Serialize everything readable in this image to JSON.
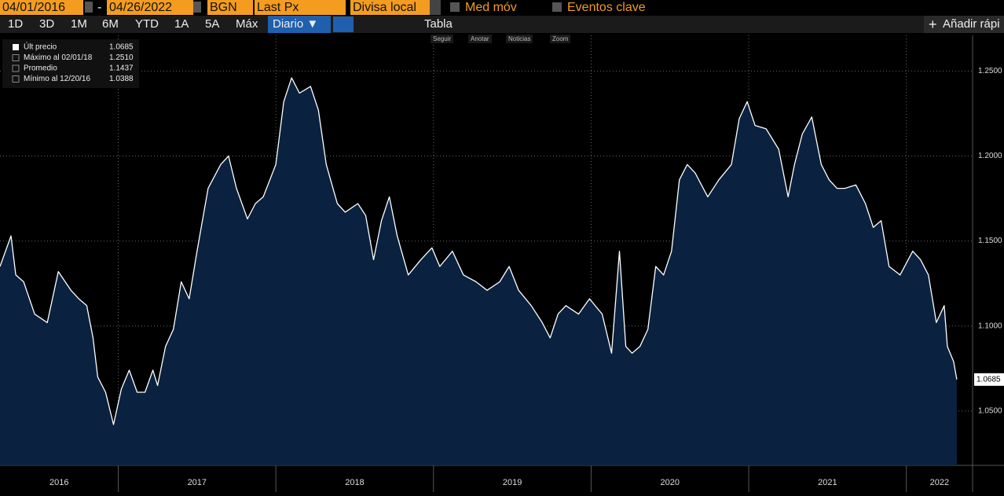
{
  "toolbar": {
    "start_date": "04/01/2016",
    "separator": "-",
    "end_date": "04/26/2022",
    "currency": "BGN",
    "field": "Last Px",
    "currency_mode": "Divisa local",
    "moving_avg": "Med móv",
    "key_events": "Eventos clave"
  },
  "periods": [
    "1D",
    "3D",
    "1M",
    "6M",
    "YTD",
    "1A",
    "5A",
    "Máx"
  ],
  "frequency": "Diario ▼",
  "table": "Tabla",
  "quick_add": "Añadir rápi",
  "chart_tools": [
    "Seguir",
    "Anotar",
    "Noticias",
    "Zoom"
  ],
  "chart_data": {
    "type": "line",
    "color": "#ffffff",
    "fill": "#0a2240",
    "grid": true,
    "stats": [
      {
        "label": "Últ precio",
        "value": "1.0685"
      },
      {
        "label": "Máximo al 02/01/18",
        "value": "1.2510"
      },
      {
        "label": "Promedio",
        "value": "1.1437"
      },
      {
        "label": "Mínimo al 12/20/16",
        "value": "1.0388"
      }
    ],
    "x": [
      2016.25,
      2016.32,
      2016.35,
      2016.4,
      2016.47,
      2016.55,
      2016.62,
      2016.7,
      2016.75,
      2016.8,
      2016.84,
      2016.87,
      2016.92,
      2016.97,
      2017.02,
      2017.07,
      2017.12,
      2017.17,
      2017.22,
      2017.25,
      2017.3,
      2017.35,
      2017.4,
      2017.45,
      2017.5,
      2017.57,
      2017.65,
      2017.7,
      2017.75,
      2017.82,
      2017.87,
      2017.92,
      2018.0,
      2018.05,
      2018.1,
      2018.15,
      2018.22,
      2018.27,
      2018.32,
      2018.39,
      2018.44,
      2018.52,
      2018.57,
      2018.62,
      2018.67,
      2018.72,
      2018.77,
      2018.84,
      2018.92,
      2018.99,
      2019.04,
      2019.12,
      2019.19,
      2019.27,
      2019.34,
      2019.42,
      2019.48,
      2019.54,
      2019.62,
      2019.69,
      2019.74,
      2019.79,
      2019.84,
      2019.92,
      2019.99,
      2020.07,
      2020.13,
      2020.18,
      2020.22,
      2020.26,
      2020.31,
      2020.36,
      2020.41,
      2020.46,
      2020.51,
      2020.56,
      2020.61,
      2020.66,
      2020.74,
      2020.81,
      2020.89,
      2020.94,
      2020.99,
      2021.04,
      2021.11,
      2021.19,
      2021.25,
      2021.29,
      2021.34,
      2021.4,
      2021.46,
      2021.51,
      2021.56,
      2021.61,
      2021.68,
      2021.74,
      2021.79,
      2021.84,
      2021.89,
      2021.96,
      2022.04,
      2022.09,
      2022.14,
      2022.19,
      2022.24,
      2022.26,
      2022.3,
      2022.32
    ],
    "values": [
      1.135,
      1.153,
      1.13,
      1.126,
      1.107,
      1.102,
      1.132,
      1.121,
      1.116,
      1.112,
      1.093,
      1.07,
      1.061,
      1.042,
      1.063,
      1.074,
      1.061,
      1.061,
      1.074,
      1.065,
      1.088,
      1.098,
      1.126,
      1.116,
      1.144,
      1.181,
      1.195,
      1.2,
      1.181,
      1.163,
      1.172,
      1.176,
      1.195,
      1.232,
      1.246,
      1.237,
      1.241,
      1.227,
      1.195,
      1.172,
      1.167,
      1.172,
      1.165,
      1.139,
      1.162,
      1.176,
      1.153,
      1.13,
      1.139,
      1.146,
      1.135,
      1.144,
      1.13,
      1.126,
      1.121,
      1.126,
      1.135,
      1.121,
      1.112,
      1.102,
      1.093,
      1.107,
      1.112,
      1.107,
      1.116,
      1.107,
      1.084,
      1.144,
      1.088,
      1.084,
      1.088,
      1.098,
      1.135,
      1.13,
      1.144,
      1.186,
      1.195,
      1.19,
      1.176,
      1.186,
      1.195,
      1.222,
      1.232,
      1.218,
      1.216,
      1.204,
      1.176,
      1.195,
      1.213,
      1.223,
      1.195,
      1.186,
      1.181,
      1.181,
      1.183,
      1.172,
      1.158,
      1.162,
      1.135,
      1.13,
      1.144,
      1.139,
      1.13,
      1.102,
      1.112,
      1.088,
      1.079,
      1.0685
    ],
    "xlim": [
      2016.25,
      2022.42
    ],
    "ylim": [
      1.018,
      1.271
    ],
    "xticks": [
      {
        "value": 2016.25,
        "label": "2016"
      },
      {
        "value": 2017,
        "label": "2017"
      },
      {
        "value": 2018,
        "label": "2018"
      },
      {
        "value": 2019,
        "label": "2019"
      },
      {
        "value": 2020,
        "label": "2020"
      },
      {
        "value": 2021,
        "label": "2021"
      },
      {
        "value": 2022,
        "label": "2022"
      }
    ],
    "yticks": [
      {
        "value": 1.05,
        "label": "1.0500"
      },
      {
        "value": 1.1,
        "label": "1.1000"
      },
      {
        "value": 1.15,
        "label": "1.1500"
      },
      {
        "value": 1.2,
        "label": "1.2000"
      },
      {
        "value": 1.25,
        "label": "1.2500"
      }
    ]
  }
}
